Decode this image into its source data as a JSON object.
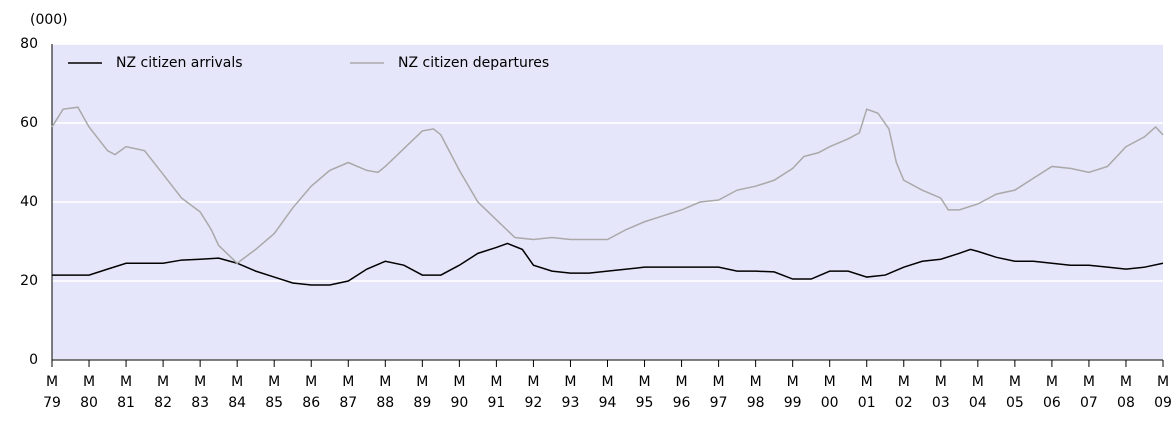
{
  "chart_data": {
    "type": "line",
    "ylabel": "(000)",
    "xlim": [
      1979,
      2009
    ],
    "ylim": [
      0,
      80
    ],
    "yticks": [
      0,
      20,
      40,
      60,
      80
    ],
    "xticks": [
      {
        "value": 1979,
        "label": "M\n79"
      },
      {
        "value": 1980,
        "label": "M\n80"
      },
      {
        "value": 1981,
        "label": "M\n81"
      },
      {
        "value": 1982,
        "label": "M\n82"
      },
      {
        "value": 1983,
        "label": "M\n83"
      },
      {
        "value": 1984,
        "label": "M\n84"
      },
      {
        "value": 1985,
        "label": "M\n85"
      },
      {
        "value": 1986,
        "label": "M\n86"
      },
      {
        "value": 1987,
        "label": "M\n87"
      },
      {
        "value": 1988,
        "label": "M\n88"
      },
      {
        "value": 1989,
        "label": "M\n89"
      },
      {
        "value": 1990,
        "label": "M\n90"
      },
      {
        "value": 1991,
        "label": "M\n91"
      },
      {
        "value": 1992,
        "label": "M\n92"
      },
      {
        "value": 1993,
        "label": "M\n93"
      },
      {
        "value": 1994,
        "label": "M\n94"
      },
      {
        "value": 1995,
        "label": "M\n95"
      },
      {
        "value": 1996,
        "label": "M\n96"
      },
      {
        "value": 1997,
        "label": "M\n97"
      },
      {
        "value": 1998,
        "label": "M\n98"
      },
      {
        "value": 1999,
        "label": "M\n99"
      },
      {
        "value": 2000,
        "label": "M\n00"
      },
      {
        "value": 2001,
        "label": "M\n01"
      },
      {
        "value": 2002,
        "label": "M\n02"
      },
      {
        "value": 2003,
        "label": "M\n03"
      },
      {
        "value": 2004,
        "label": "M\n04"
      },
      {
        "value": 2005,
        "label": "M\n05"
      },
      {
        "value": 2006,
        "label": "M\n06"
      },
      {
        "value": 2007,
        "label": "M\n07"
      },
      {
        "value": 2008,
        "label": "M\n08"
      },
      {
        "value": 2009,
        "label": "M\n09"
      }
    ],
    "grid": true,
    "background": "#e6e6fa",
    "legend": "top-left",
    "series": [
      {
        "name": "NZ citizen arrivals",
        "color": "#000000",
        "x": [
          1979,
          1980,
          1980.5,
          1981,
          1982,
          1982.5,
          1983,
          1983.5,
          1984,
          1984.5,
          1985,
          1985.5,
          1986,
          1986.5,
          1987,
          1987.5,
          1988,
          1988.5,
          1989,
          1989.5,
          1990,
          1990.5,
          1991,
          1991.3,
          1991.7,
          1992,
          1992.5,
          1993,
          1993.5,
          1994,
          1995,
          1996,
          1997,
          1997.5,
          1998,
          1998.5,
          1999,
          1999.5,
          2000,
          2000.5,
          2001,
          2001.5,
          2002,
          2002.5,
          2003,
          2003.5,
          2003.8,
          2004,
          2004.5,
          2005,
          2005.5,
          2006,
          2006.5,
          2007,
          2007.5,
          2008,
          2008.5,
          2009
        ],
        "values": [
          21.5,
          21.5,
          23,
          24.5,
          24.5,
          25.3,
          25.5,
          25.8,
          24.5,
          22.5,
          21,
          19.5,
          19,
          19,
          20,
          23,
          25,
          24,
          21.5,
          21.5,
          24,
          27,
          28.5,
          29.5,
          28,
          24,
          22.5,
          22,
          22,
          22.5,
          23.5,
          23.5,
          23.5,
          22.5,
          22.5,
          22.3,
          20.5,
          20.5,
          22.5,
          22.5,
          21,
          21.5,
          23.5,
          25,
          25.5,
          27,
          28,
          27.5,
          26,
          25,
          25,
          24.5,
          24,
          24,
          23.5,
          23,
          23.5,
          24.5
        ]
      },
      {
        "name": "NZ citizen departures",
        "color": "#a9a9a9",
        "x": [
          1979,
          1979.3,
          1979.7,
          1980,
          1980.5,
          1980.7,
          1981,
          1981.5,
          1982,
          1982.5,
          1983,
          1983.3,
          1983.5,
          1984,
          1984.5,
          1985,
          1985.5,
          1986,
          1986.5,
          1987,
          1987.5,
          1987.8,
          1988,
          1988.5,
          1989,
          1989.3,
          1989.5,
          1990,
          1990.5,
          1991,
          1991.5,
          1992,
          1992.5,
          1993,
          1993.5,
          1994,
          1994.5,
          1995,
          1995.5,
          1996,
          1996.5,
          1997,
          1997.5,
          1998,
          1998.5,
          1999,
          1999.3,
          1999.7,
          2000,
          2000.5,
          2000.8,
          2001,
          2001.3,
          2001.6,
          2001.8,
          2002,
          2002.5,
          2003,
          2003.2,
          2003.5,
          2004,
          2004.5,
          2005,
          2005.5,
          2006,
          2006.5,
          2007,
          2007.5,
          2008,
          2008.5,
          2008.8,
          2009
        ],
        "values": [
          59,
          63.5,
          64,
          59,
          53,
          52,
          54,
          53,
          47,
          41,
          37.5,
          33,
          29,
          24.5,
          28,
          32,
          38.5,
          44,
          48,
          50,
          48,
          47.5,
          49,
          53.5,
          58,
          58.5,
          57,
          48,
          40,
          35.5,
          31,
          30.5,
          31,
          30.5,
          30.5,
          30.5,
          33,
          35,
          36.5,
          38,
          40,
          40.5,
          43,
          44,
          45.5,
          48.5,
          51.5,
          52.5,
          54,
          56,
          57.5,
          63.5,
          62.5,
          58.5,
          50,
          45.5,
          43,
          41,
          38,
          38,
          39.5,
          42,
          43,
          46,
          49,
          48.5,
          47.5,
          49,
          54,
          56.5,
          59,
          57
        ]
      }
    ]
  }
}
